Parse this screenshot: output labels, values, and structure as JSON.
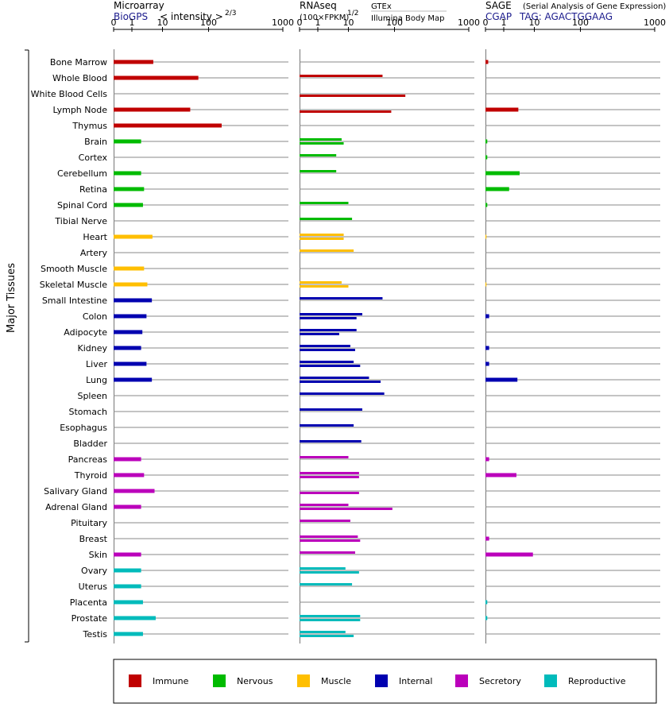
{
  "panels": {
    "microarray": {
      "title": "Microarray",
      "source": "BioGPS",
      "unit": "< intensity >",
      "unit_exp": "2/3"
    },
    "rnaseq": {
      "title": "RNAseq",
      "unit": "(100×FPKM)",
      "unit_exp": "1/2",
      "source_a": "GTEx",
      "source_b": "Illumina Body Map"
    },
    "sage": {
      "title": "SAGE",
      "subtitle": "(Serial Analysis of Gene Expression)",
      "source": "CGAP",
      "tag": "TAG: AGACTGGAAG"
    }
  },
  "y_group_label": "Major Tissues",
  "axis_ticks": [
    "0",
    "1",
    "10",
    "100",
    "1000"
  ],
  "legend": [
    {
      "label": "Immune",
      "color": "#c00000"
    },
    {
      "label": "Nervous",
      "color": "#00bb00"
    },
    {
      "label": "Muscle",
      "color": "#ffbf00"
    },
    {
      "label": "Internal",
      "color": "#0000b0"
    },
    {
      "label": "Secretory",
      "color": "#bb00bb"
    },
    {
      "label": "Reproductive",
      "color": "#00bbbb"
    }
  ],
  "chart_data": {
    "type": "bar",
    "xscale": "log-like (0,1,10,100,1000)",
    "xlim": [
      0,
      1000
    ],
    "categories": [
      "Bone Marrow",
      "Whole Blood",
      "White Blood Cells",
      "Lymph Node",
      "Thymus",
      "Brain",
      "Cortex",
      "Cerebellum",
      "Retina",
      "Spinal Cord",
      "Tibial Nerve",
      "Heart",
      "Artery",
      "Smooth Muscle",
      "Skeletal Muscle",
      "Small Intestine",
      "Colon",
      "Adipocyte",
      "Kidney",
      "Liver",
      "Lung",
      "Spleen",
      "Stomach",
      "Esophagus",
      "Bladder",
      "Pancreas",
      "Thyroid",
      "Salivary Gland",
      "Adrenal Gland",
      "Pituitary",
      "Breast",
      "Skin",
      "Ovary",
      "Uterus",
      "Placenta",
      "Prostate",
      "Testis"
    ],
    "groups": [
      "Immune",
      "Immune",
      "Immune",
      "Immune",
      "Immune",
      "Nervous",
      "Nervous",
      "Nervous",
      "Nervous",
      "Nervous",
      "Nervous",
      "Muscle",
      "Muscle",
      "Muscle",
      "Muscle",
      "Internal",
      "Internal",
      "Internal",
      "Internal",
      "Internal",
      "Internal",
      "Internal",
      "Internal",
      "Internal",
      "Internal",
      "Secretory",
      "Secretory",
      "Secretory",
      "Secretory",
      "Secretory",
      "Secretory",
      "Secretory",
      "Reproductive",
      "Reproductive",
      "Reproductive",
      "Reproductive",
      "Reproductive"
    ],
    "series": [
      {
        "name": "Microarray",
        "values": [
          5,
          60,
          null,
          40,
          150,
          2,
          null,
          2,
          2.5,
          2.3,
          null,
          4.7,
          null,
          2.5,
          3.2,
          4.5,
          3,
          2.2,
          2,
          3,
          4.5,
          null,
          null,
          null,
          null,
          2,
          2.5,
          5.5,
          2,
          null,
          null,
          2,
          2,
          2,
          2.3,
          6,
          2.3
        ]
      },
      {
        "name": "RNAseq GTEx",
        "values": [
          null,
          55,
          null,
          null,
          null,
          6,
          4,
          4,
          null,
          10,
          12,
          7,
          13,
          null,
          6,
          55,
          20,
          15,
          11,
          13,
          28,
          60,
          20,
          13,
          19,
          10,
          17,
          null,
          10,
          11,
          16,
          14,
          8,
          12,
          null,
          18,
          8
        ]
      },
      {
        "name": "RNAseq Illumina Body Map",
        "values": [
          null,
          null,
          140,
          85,
          null,
          7,
          null,
          null,
          null,
          null,
          null,
          7,
          null,
          null,
          10,
          null,
          15,
          5,
          14,
          18,
          50,
          null,
          null,
          null,
          null,
          null,
          17,
          17,
          90,
          null,
          18,
          null,
          17,
          null,
          null,
          18,
          13
        ]
      },
      {
        "name": "SAGE",
        "values": [
          0.15,
          null,
          null,
          3,
          null,
          0.1,
          0.1,
          3.3,
          1.5,
          0.1,
          null,
          0.05,
          null,
          null,
          0.05,
          null,
          0.2,
          null,
          0.2,
          0.2,
          2.8,
          null,
          null,
          null,
          null,
          0.2,
          2.6,
          null,
          null,
          null,
          0.2,
          9,
          null,
          null,
          0.1,
          0.1,
          null
        ]
      }
    ]
  }
}
